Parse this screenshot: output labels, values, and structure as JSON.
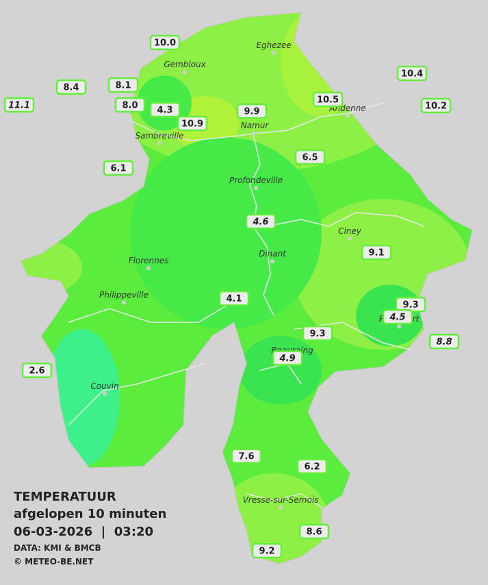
{
  "cities": [
    {
      "name": "Eghezee"
    },
    {
      "name": "Gembloux"
    },
    {
      "name": "Andenne"
    },
    {
      "name": "Namur"
    },
    {
      "name": "Sambreville"
    },
    {
      "name": "Profondeville"
    },
    {
      "name": "Ciney"
    },
    {
      "name": "Dinant"
    },
    {
      "name": "Florennes"
    },
    {
      "name": "Philippeville"
    },
    {
      "name": "Rochefort"
    },
    {
      "name": "Beauraing"
    },
    {
      "name": "Couvin"
    },
    {
      "name": "Vresse-sur-Semois"
    }
  ],
  "stations": [
    {
      "value": "10.0",
      "italic": false
    },
    {
      "value": "8.4",
      "italic": false
    },
    {
      "value": "8.1",
      "italic": false
    },
    {
      "value": "11.1",
      "italic": true
    },
    {
      "value": "8.0",
      "italic": false
    },
    {
      "value": "4.3",
      "italic": false
    },
    {
      "value": "10.9",
      "italic": false
    },
    {
      "value": "9.9",
      "italic": false
    },
    {
      "value": "10.5",
      "italic": false
    },
    {
      "value": "10.4",
      "italic": false
    },
    {
      "value": "10.2",
      "italic": false
    },
    {
      "value": "6.1",
      "italic": false
    },
    {
      "value": "6.5",
      "italic": false
    },
    {
      "value": "4.6",
      "italic": true
    },
    {
      "value": "9.1",
      "italic": false
    },
    {
      "value": "4.1",
      "italic": false
    },
    {
      "value": "9.3",
      "italic": false
    },
    {
      "value": "4.5",
      "italic": true
    },
    {
      "value": "9.3",
      "italic": false
    },
    {
      "value": "8.8",
      "italic": true
    },
    {
      "value": "4.9",
      "italic": true
    },
    {
      "value": "2.6",
      "italic": false
    },
    {
      "value": "7.6",
      "italic": false
    },
    {
      "value": "6.2",
      "italic": false
    },
    {
      "value": "8.6",
      "italic": false
    },
    {
      "value": "9.2",
      "italic": false
    }
  ],
  "legend": {
    "title": "TEMPERATUUR",
    "subtitle": "afgelopen 10 minuten",
    "datetime": "06-03-2026  |  03:20",
    "source": "DATA: KMI & BMCB",
    "copyright": "© METEO-BE.NET"
  }
}
